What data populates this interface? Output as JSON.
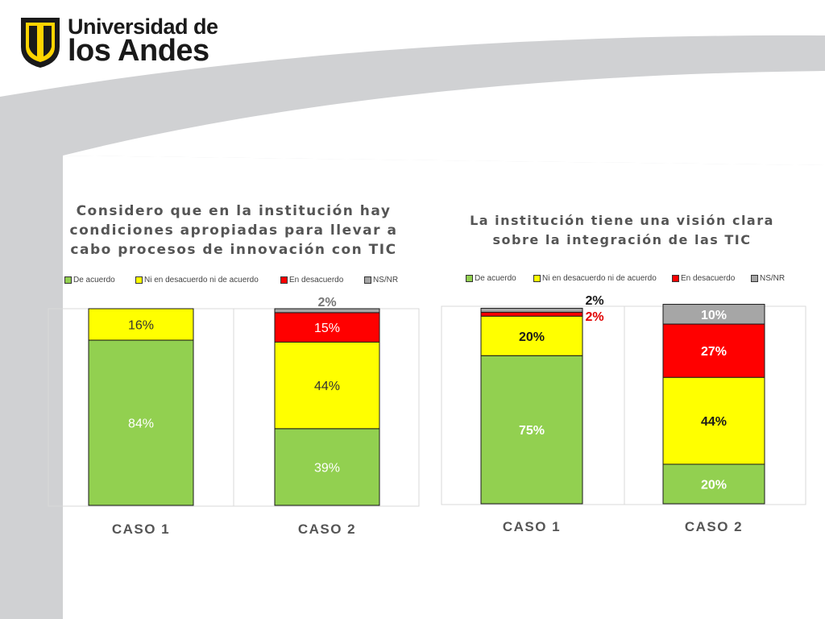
{
  "logo": {
    "line1": "Universidad de",
    "line2": "los Andes"
  },
  "colors": {
    "green": "#92d050",
    "yellow": "#ffff00",
    "red": "#ff0000",
    "gray": "#a6a6a6",
    "logo_yellow": "#ffd400"
  },
  "chart_data": [
    {
      "type": "bar",
      "stacked": true,
      "title": "Considero que en la institución hay condiciones apropiadas para llevar a cabo procesos de innovación con TIC",
      "categories": [
        "CASO 1",
        "CASO 2"
      ],
      "series": [
        {
          "name": "De acuerdo",
          "values": [
            84,
            39
          ],
          "labels": [
            "84%",
            "39%"
          ]
        },
        {
          "name": "Ni en desacuerdo ni de acuerdo",
          "values": [
            16,
            44
          ],
          "labels": [
            "16%",
            "44%"
          ]
        },
        {
          "name": "En desacuerdo",
          "values": [
            0,
            15
          ],
          "labels": [
            "",
            "15%"
          ]
        },
        {
          "name": "NS/NR",
          "values": [
            0,
            2
          ],
          "labels": [
            "",
            "2%"
          ]
        }
      ],
      "ylim": [
        0,
        100
      ],
      "legend": "top",
      "grid": false
    },
    {
      "type": "bar",
      "stacked": true,
      "title": "La institución tiene una visión clara sobre la integración de las TIC",
      "categories": [
        "CASO 1",
        "CASO 2"
      ],
      "series": [
        {
          "name": "De acuerdo",
          "values": [
            75,
            20
          ],
          "labels": [
            "75%",
            "20%"
          ]
        },
        {
          "name": "Ni en desacuerdo ni de acuerdo",
          "values": [
            20,
            44
          ],
          "labels": [
            "20%",
            "44%"
          ]
        },
        {
          "name": "En desacuerdo",
          "values": [
            2,
            27
          ],
          "labels": [
            "2%",
            "27%"
          ]
        },
        {
          "name": "NS/NR",
          "values": [
            2,
            10
          ],
          "labels": [
            "2%",
            "10%"
          ]
        }
      ],
      "ylim": [
        0,
        100
      ],
      "legend": "top",
      "grid": false
    }
  ]
}
